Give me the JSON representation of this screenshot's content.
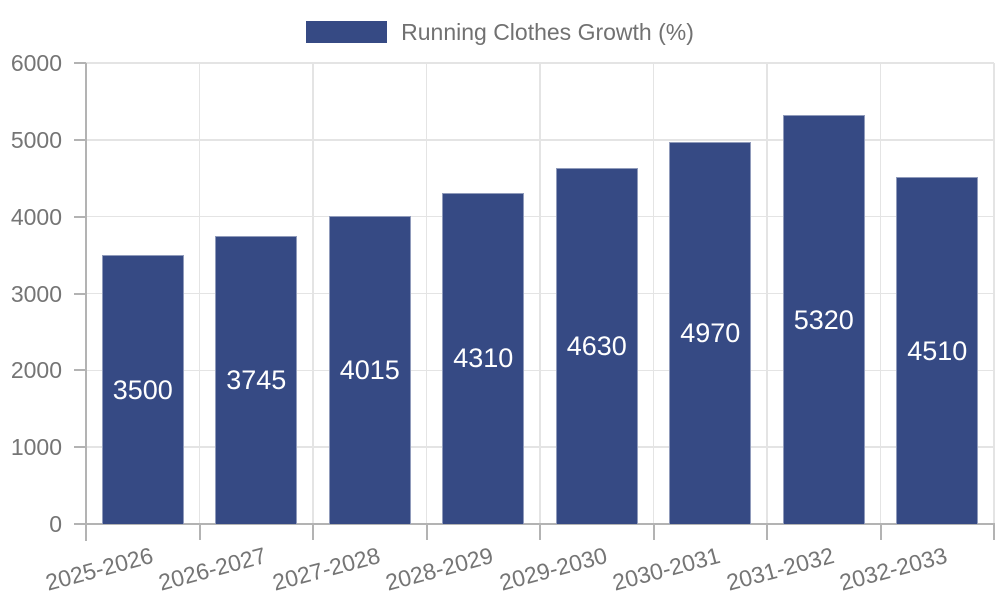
{
  "chart_data": {
    "type": "bar",
    "title": "Running Clothes Growth (%)",
    "categories": [
      "2025-2026",
      "2026-2027",
      "2027-2028",
      "2028-2029",
      "2029-2030",
      "2030-2031",
      "2031-2032",
      "2032-2033"
    ],
    "series": [
      {
        "name": "Running Clothes Growth (%)",
        "values": [
          3500,
          3745,
          4015,
          4310,
          4630,
          4970,
          5320,
          4510
        ]
      }
    ],
    "value_labels": [
      "3500",
      "3745",
      "4015",
      "4310",
      "4630",
      "4970",
      "5320",
      "4510"
    ],
    "xlabel": "",
    "ylabel": "",
    "ylim": [
      0,
      6000
    ],
    "yticks": [
      0,
      1000,
      2000,
      3000,
      4000,
      5000,
      6000
    ],
    "ytick_labels": [
      "0",
      "1000",
      "2000",
      "3000",
      "4000",
      "5000",
      "6000"
    ],
    "grid": true,
    "legend_position": "top-center",
    "colors": {
      "bar": "#364a84",
      "value_text": "#ffffff",
      "axis_text": "#757575",
      "grid_line": "#e4e4e4",
      "axis_line": "#b3b3b3"
    }
  }
}
